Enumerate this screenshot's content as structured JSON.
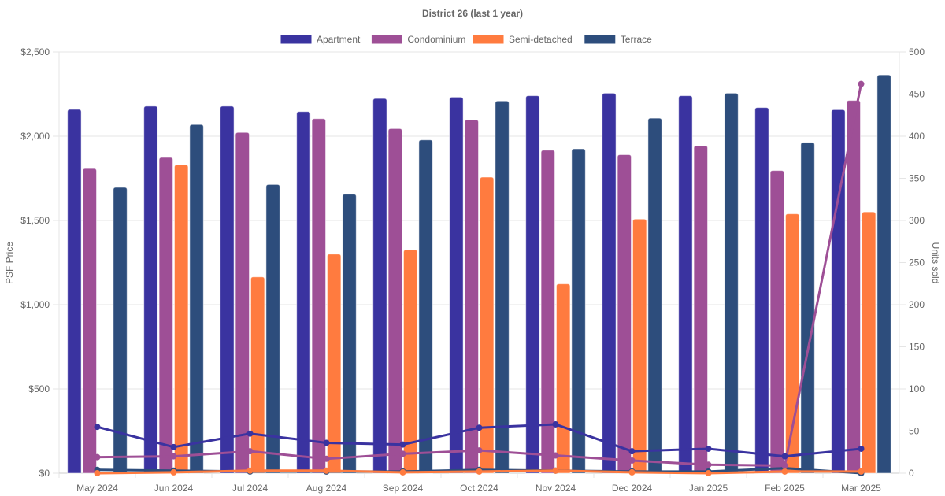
{
  "chart_data": {
    "type": "bar",
    "title": "District 26 (last 1 year)",
    "categories": [
      "May 2024",
      "Jun 2024",
      "Jul 2024",
      "Aug 2024",
      "Sep 2024",
      "Oct 2024",
      "Nov 2024",
      "Dec 2024",
      "Jan 2025",
      "Feb 2025",
      "Mar 2025"
    ],
    "ylabel": "PSF Price",
    "y2label": "Units sold",
    "ylim": [
      0,
      2500
    ],
    "y2lim": [
      0,
      500
    ],
    "yticks": [
      "$0",
      "$500",
      "$1,000",
      "$1,500",
      "$2,000",
      "$2,500"
    ],
    "ytick_values": [
      0,
      500,
      1000,
      1500,
      2000,
      2500
    ],
    "y2ticks": [
      "0",
      "50",
      "100",
      "150",
      "200",
      "250",
      "300",
      "350",
      "400",
      "450",
      "500"
    ],
    "y2tick_values": [
      0,
      50,
      100,
      150,
      200,
      250,
      300,
      350,
      400,
      450,
      500
    ],
    "grid": true,
    "legend_position": "top",
    "legend": [
      {
        "name": "Apartment",
        "color": "#3a33a0"
      },
      {
        "name": "Condominium",
        "color": "#9e4f96"
      },
      {
        "name": "Semi-detached",
        "color": "#ff7b3f"
      },
      {
        "name": "Terrace",
        "color": "#2d4d7c"
      }
    ],
    "series": [
      {
        "name": "Apartment",
        "type": "bar",
        "axis": "PSF Price",
        "color": "#3a33a0",
        "values": [
          2159,
          2178,
          2178,
          2146,
          2224,
          2232,
          2240,
          2255,
          2240,
          2170,
          2157
        ]
      },
      {
        "name": "Condominium",
        "type": "bar",
        "axis": "PSF Price",
        "color": "#9e4f96",
        "values": [
          1808,
          1874,
          2022,
          2104,
          2045,
          2097,
          1917,
          1890,
          1944,
          1796,
          2212
        ]
      },
      {
        "name": "Semi-detached",
        "type": "bar",
        "axis": "PSF Price",
        "color": "#ff7b3f",
        "values": [
          null,
          1830,
          1165,
          1300,
          1326,
          1757,
          1123,
          1508,
          null,
          1539,
          1551
        ]
      },
      {
        "name": "Terrace",
        "type": "bar",
        "axis": "PSF Price",
        "color": "#2d4d7c",
        "values": [
          1696,
          2069,
          1713,
          1656,
          1978,
          2209,
          1925,
          2107,
          2255,
          1963,
          2364
        ]
      },
      {
        "name": "Apartment",
        "type": "line",
        "axis": "Units sold",
        "color": "#3a33a0",
        "values": [
          55,
          31,
          47,
          36,
          34,
          54,
          58,
          26,
          29,
          20,
          29
        ]
      },
      {
        "name": "Condominium",
        "type": "line",
        "axis": "Units sold",
        "color": "#9e4f96",
        "values": [
          19,
          20,
          26,
          17,
          23,
          27,
          21,
          15,
          10,
          9,
          462
        ]
      },
      {
        "name": "Semi-detached",
        "type": "line",
        "axis": "Units sold",
        "color": "#ff7b3f",
        "values": [
          0,
          1,
          3,
          3,
          1,
          2,
          3,
          1,
          0,
          2,
          2
        ]
      },
      {
        "name": "Terrace",
        "type": "line",
        "axis": "Units sold",
        "color": "#2d4d7c",
        "values": [
          4,
          3,
          2,
          2,
          2,
          4,
          3,
          2,
          2,
          6,
          0
        ]
      }
    ]
  }
}
